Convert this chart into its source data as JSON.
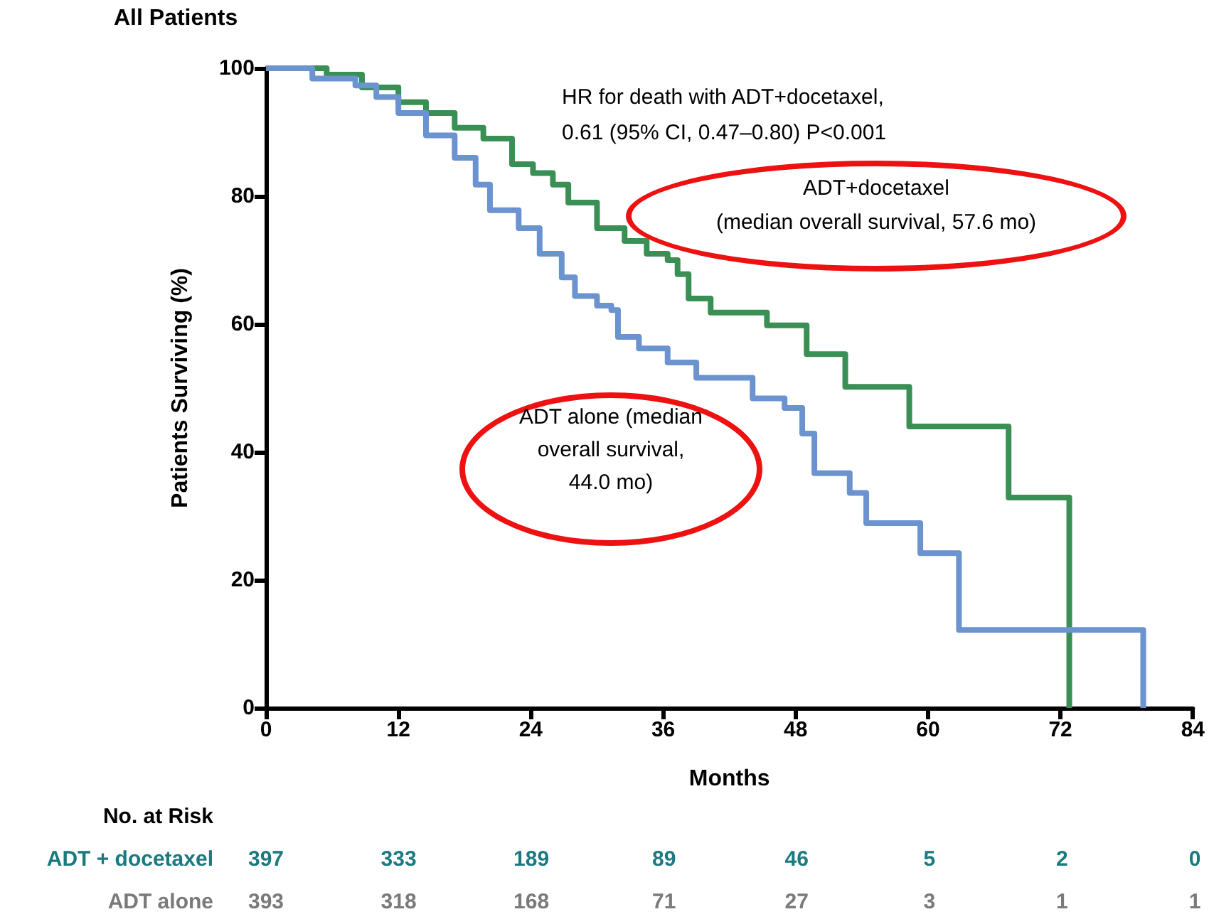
{
  "chart_data": {
    "type": "step",
    "title": "All Patients",
    "xlabel": "Months",
    "ylabel": "Patients Surviving (%)",
    "xlim": [
      0,
      84
    ],
    "xticks": [
      0,
      12,
      24,
      36,
      48,
      60,
      72,
      84
    ],
    "ylim": [
      0,
      100
    ],
    "yticks": [
      0,
      20,
      40,
      60,
      80,
      100
    ],
    "grid": false,
    "marker": "none",
    "line_style": "solid",
    "series": [
      {
        "color": "#3a8f55",
        "x": [
          0,
          5.5,
          8.7,
          12,
          14.5,
          17.1,
          19.7,
          22.3,
          24.2,
          26,
          27.4,
          30,
          32.5,
          34.5,
          36.4,
          37.3,
          38.3,
          40.3,
          45.4,
          46,
          49,
          51.8,
          52.5,
          57.8,
          58.3,
          67.3,
          72.8,
          72.8
        ],
        "values": [
          100,
          99,
          97,
          94.7,
          93,
          90.7,
          89,
          85,
          83.6,
          81.8,
          79,
          75,
          73,
          71,
          70,
          67.8,
          64,
          61.8,
          59.8,
          59.8,
          55.3,
          55.3,
          50.2,
          50.2,
          44,
          32.9,
          16.7,
          0
        ]
      },
      {
        "color": "#6a93cf",
        "x": [
          0,
          4.2,
          8.1,
          10,
          12,
          14.5,
          17.1,
          19,
          20.3,
          22.9,
          24.8,
          26.8,
          28,
          30,
          31.3,
          31.9,
          33.8,
          36.4,
          39,
          42.4,
          44.1,
          47,
          48.6,
          49.7,
          52.9,
          54.4,
          59.3,
          62.8,
          79.5
        ],
        "values": [
          100,
          98.4,
          97.3,
          95.5,
          93,
          89.5,
          86,
          81.8,
          77.8,
          75,
          71,
          67.3,
          64.4,
          62.9,
          62.2,
          58,
          56.2,
          54,
          51.6,
          51.6,
          48.4,
          46.9,
          42.9,
          36.7,
          33.6,
          28.9,
          24.2,
          12.2,
          0
        ]
      }
    ],
    "annotations": [
      "HR for death with ADT+docetaxel,\n0.61 (95% CI, 0.47–0.80) P<0.001",
      "ADT+docetaxel\n(median overall survival, 57.6 mo)",
      "ADT alone  (median\noverall survival,\n44.0 mo)",
      "No. at Risk",
      "ADT + docetaxel",
      "397",
      "333",
      "189",
      "89",
      "46",
      "5",
      "2",
      "0",
      "ADT alone",
      "393",
      "318",
      "168",
      "71",
      "27",
      "3",
      "1",
      "1"
    ]
  }
}
